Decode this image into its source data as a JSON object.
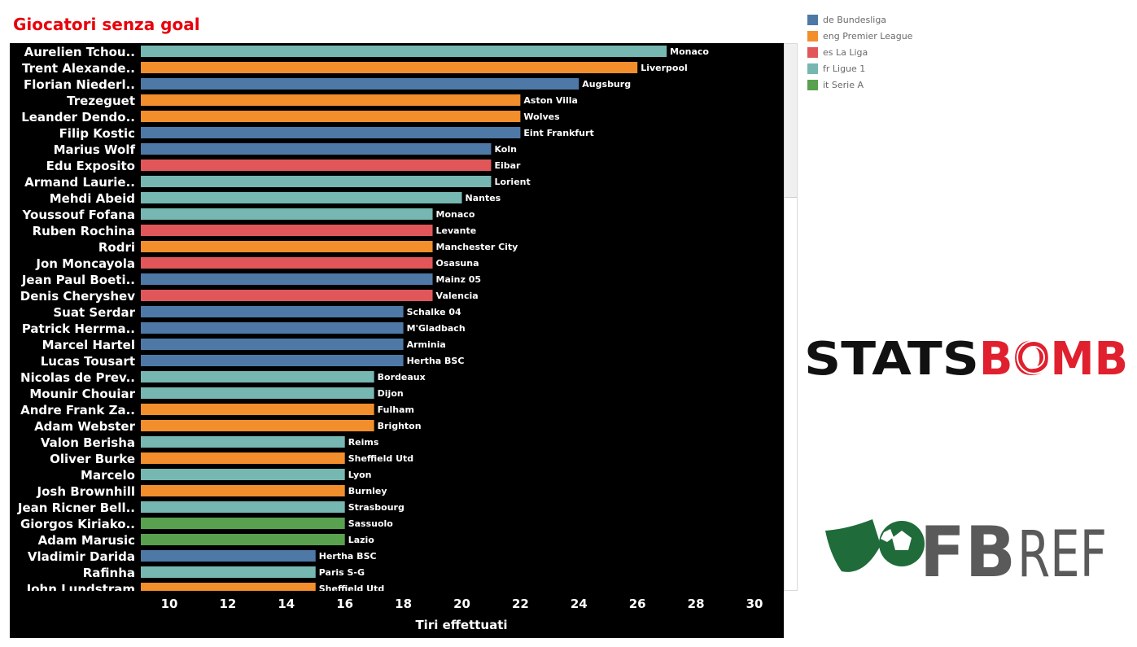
{
  "title": "Giocatori senza goal",
  "legend": [
    {
      "key": "de",
      "label": "de Bundesliga",
      "color": "#4e79a7"
    },
    {
      "key": "eng",
      "label": "eng Premier League",
      "color": "#f28e2b"
    },
    {
      "key": "es",
      "label": "es La Liga",
      "color": "#e15759"
    },
    {
      "key": "fr",
      "label": "fr Ligue 1",
      "color": "#76b7b2"
    },
    {
      "key": "it",
      "label": "it Serie A",
      "color": "#59a14f"
    }
  ],
  "logos": {
    "statsbomb_text": "STATSBOMB",
    "fbref_text": "FBREF"
  },
  "chart_data": {
    "type": "bar",
    "orientation": "horizontal",
    "xlabel": "Tiri effettuati",
    "xlim": [
      9,
      31
    ],
    "xticks": [
      10,
      12,
      14,
      16,
      18,
      20,
      22,
      24,
      26,
      28,
      30
    ],
    "rows": [
      {
        "player": "Aurelien Tchou..",
        "value": 27,
        "team": "Monaco",
        "league": "fr"
      },
      {
        "player": "Trent Alexande..",
        "value": 26,
        "team": "Liverpool",
        "league": "eng"
      },
      {
        "player": "Florian Niederl..",
        "value": 24,
        "team": "Augsburg",
        "league": "de"
      },
      {
        "player": "Trezeguet",
        "value": 22,
        "team": "Aston Villa",
        "league": "eng"
      },
      {
        "player": "Leander Dendo..",
        "value": 22,
        "team": "Wolves",
        "league": "eng"
      },
      {
        "player": "Filip Kostic",
        "value": 22,
        "team": "Eint Frankfurt",
        "league": "de"
      },
      {
        "player": "Marius Wolf",
        "value": 21,
        "team": "Koln",
        "league": "de"
      },
      {
        "player": "Edu Exposito",
        "value": 21,
        "team": "Eibar",
        "league": "es"
      },
      {
        "player": "Armand Laurie..",
        "value": 21,
        "team": "Lorient",
        "league": "fr"
      },
      {
        "player": "Mehdi Abeid",
        "value": 20,
        "team": "Nantes",
        "league": "fr"
      },
      {
        "player": "Youssouf Fofana",
        "value": 19,
        "team": "Monaco",
        "league": "fr"
      },
      {
        "player": "Ruben Rochina",
        "value": 19,
        "team": "Levante",
        "league": "es"
      },
      {
        "player": "Rodri",
        "value": 19,
        "team": "Manchester City",
        "league": "eng"
      },
      {
        "player": "Jon Moncayola",
        "value": 19,
        "team": "Osasuna",
        "league": "es"
      },
      {
        "player": "Jean Paul Boeti..",
        "value": 19,
        "team": "Mainz 05",
        "league": "de"
      },
      {
        "player": "Denis Cheryshev",
        "value": 19,
        "team": "Valencia",
        "league": "es"
      },
      {
        "player": "Suat Serdar",
        "value": 18,
        "team": "Schalke 04",
        "league": "de"
      },
      {
        "player": "Patrick Herrma..",
        "value": 18,
        "team": "M'Gladbach",
        "league": "de"
      },
      {
        "player": "Marcel Hartel",
        "value": 18,
        "team": "Arminia",
        "league": "de"
      },
      {
        "player": "Lucas Tousart",
        "value": 18,
        "team": "Hertha BSC",
        "league": "de"
      },
      {
        "player": "Nicolas de Prev..",
        "value": 17,
        "team": "Bordeaux",
        "league": "fr"
      },
      {
        "player": "Mounir Chouiar",
        "value": 17,
        "team": "Dijon",
        "league": "fr"
      },
      {
        "player": "Andre Frank Za..",
        "value": 17,
        "team": "Fulham",
        "league": "eng"
      },
      {
        "player": "Adam Webster",
        "value": 17,
        "team": "Brighton",
        "league": "eng"
      },
      {
        "player": "Valon Berisha",
        "value": 16,
        "team": "Reims",
        "league": "fr"
      },
      {
        "player": "Oliver Burke",
        "value": 16,
        "team": "Sheffield Utd",
        "league": "eng"
      },
      {
        "player": "Marcelo",
        "value": 16,
        "team": "Lyon",
        "league": "fr"
      },
      {
        "player": "Josh Brownhill",
        "value": 16,
        "team": "Burnley",
        "league": "eng"
      },
      {
        "player": "Jean Ricner Bell..",
        "value": 16,
        "team": "Strasbourg",
        "league": "fr"
      },
      {
        "player": "Giorgos Kiriako..",
        "value": 16,
        "team": "Sassuolo",
        "league": "it"
      },
      {
        "player": "Adam Marusic",
        "value": 16,
        "team": "Lazio",
        "league": "it"
      },
      {
        "player": "Vladimir Darida",
        "value": 15,
        "team": "Hertha BSC",
        "league": "de"
      },
      {
        "player": "Rafinha",
        "value": 15,
        "team": "Paris S-G",
        "league": "fr"
      },
      {
        "player": "John Lundstram",
        "value": 15,
        "team": "Sheffield Utd",
        "league": "eng"
      }
    ]
  }
}
